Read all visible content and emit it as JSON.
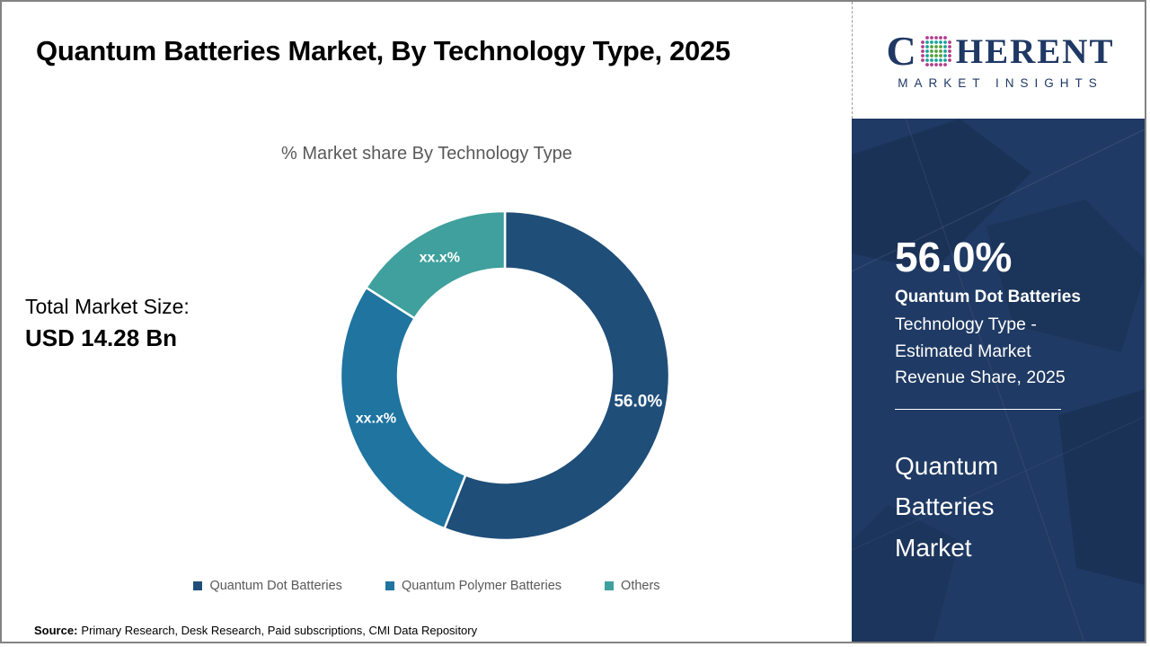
{
  "header": {
    "title": "Quantum Batteries Market, By Technology Type, 2025"
  },
  "logo": {
    "brand_first_letter": "C",
    "brand_rest": "HERENT",
    "brand_subtitle": "MARKET INSIGHTS",
    "brand_color": "#1F3864"
  },
  "main": {
    "subtitle": "% Market share By Technology Type",
    "total_market_size_label": "Total Market Size:",
    "total_market_size_value": "USD 14.28 Bn",
    "source_label": "Source:",
    "source_text": "Primary Research, Desk Research, Paid subscriptions, CMI Data Repository"
  },
  "panel": {
    "stat_value": "56.0%",
    "stat_segment": "Quantum Dot Batteries",
    "stat_description": "Technology Type - Estimated Market Revenue Share, 2025",
    "market_name": "Quantum Batteries Market",
    "background_color": "#1F3A64"
  },
  "chart_data": {
    "type": "donut",
    "title": "% Market share By Technology Type",
    "categories": [
      "Quantum Dot Batteries",
      "Quantum Polymer Batteries",
      "Others"
    ],
    "values": [
      56.0,
      28.0,
      16.0
    ],
    "slice_labels": [
      "56.0%",
      "xx.x%",
      "xx.x%"
    ],
    "colors": [
      "#1F4E79",
      "#1F74A0",
      "#3FA09D"
    ],
    "inner_radius_ratio": 0.65,
    "start_angle_deg": 0,
    "legend_position": "bottom",
    "slice_label_color": "#ffffff"
  }
}
